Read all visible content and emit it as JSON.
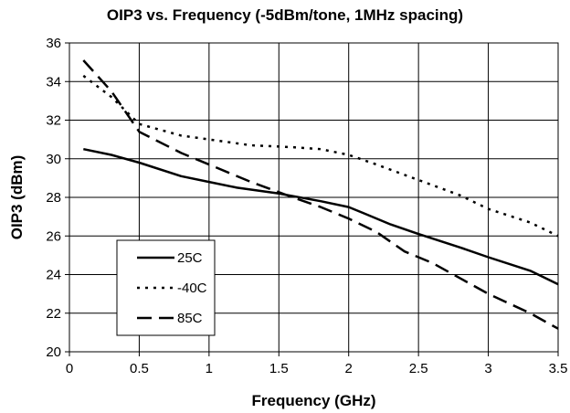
{
  "chart_data": {
    "type": "line",
    "title": "OIP3 vs. Frequency (-5dBm/tone, 1MHz spacing)",
    "xlabel": "Frequency (GHz)",
    "ylabel": "OIP3 (dBm)",
    "xlim": [
      0,
      3.5
    ],
    "ylim": [
      20,
      36
    ],
    "xticks": [
      0,
      0.5,
      1,
      1.5,
      2,
      2.5,
      3,
      3.5
    ],
    "xtick_labels": [
      "0",
      "0.5",
      "1",
      "1.5",
      "2",
      "2.5",
      "3",
      "3.5"
    ],
    "yticks": [
      20,
      22,
      24,
      26,
      28,
      30,
      32,
      34,
      36
    ],
    "ytick_labels": [
      "20",
      "22",
      "24",
      "26",
      "28",
      "30",
      "32",
      "34",
      "36"
    ],
    "grid": true,
    "legend_position": "bottom-left",
    "series": [
      {
        "name": "25C",
        "style": "solid",
        "color": "#000000",
        "x": [
          0.1,
          0.3,
          0.5,
          0.8,
          1.0,
          1.2,
          1.5,
          1.8,
          2.0,
          2.1,
          2.3,
          2.5,
          2.8,
          3.0,
          3.3,
          3.5
        ],
        "y": [
          30.5,
          30.2,
          29.8,
          29.1,
          28.8,
          28.5,
          28.2,
          27.8,
          27.5,
          27.2,
          26.6,
          26.1,
          25.4,
          24.9,
          24.2,
          23.5
        ]
      },
      {
        "name": "-40C",
        "style": "dotted",
        "color": "#000000",
        "x": [
          0.1,
          0.3,
          0.5,
          0.8,
          1.0,
          1.3,
          1.6,
          1.8,
          2.0,
          2.2,
          2.5,
          2.8,
          3.0,
          3.3,
          3.5
        ],
        "y": [
          34.3,
          33.2,
          31.8,
          31.2,
          31.0,
          30.7,
          30.6,
          30.5,
          30.2,
          29.7,
          28.9,
          28.1,
          27.4,
          26.7,
          26.0
        ]
      },
      {
        "name": "85C",
        "style": "dashed",
        "color": "#000000",
        "x": [
          0.1,
          0.3,
          0.5,
          0.8,
          1.0,
          1.3,
          1.6,
          1.8,
          2.0,
          2.2,
          2.4,
          2.6,
          2.8,
          3.0,
          3.3,
          3.5
        ],
        "y": [
          35.1,
          33.5,
          31.4,
          30.3,
          29.7,
          28.8,
          28.0,
          27.5,
          26.9,
          26.2,
          25.2,
          24.6,
          23.8,
          23.0,
          22.0,
          21.2
        ]
      }
    ]
  }
}
